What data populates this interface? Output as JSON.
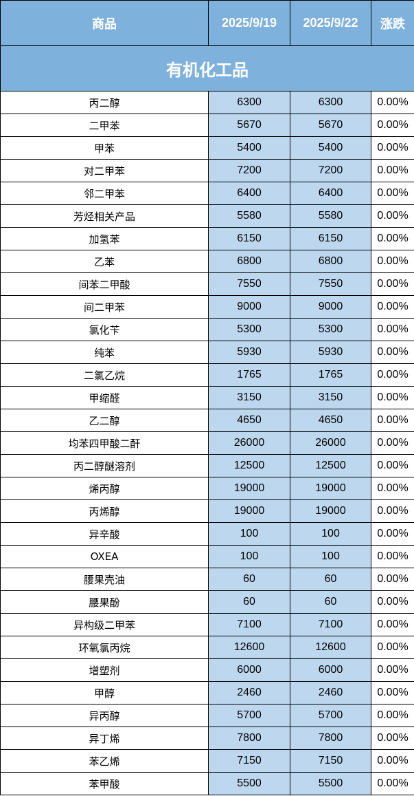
{
  "header": {
    "product": "商品",
    "date1": "2025/9/19",
    "date2": "2025/9/22",
    "change": "涨跌"
  },
  "section_title": "有机化工品",
  "colors": {
    "header_bg": "#7EB1DC",
    "value_bg": "#BDD7EE"
  },
  "rows": [
    {
      "name": "丙二醇",
      "v1": "6300",
      "v2": "6300",
      "chg": "0.00%"
    },
    {
      "name": "二甲苯",
      "v1": "5670",
      "v2": "5670",
      "chg": "0.00%"
    },
    {
      "name": "甲苯",
      "v1": "5400",
      "v2": "5400",
      "chg": "0.00%"
    },
    {
      "name": "对二甲苯",
      "v1": "7200",
      "v2": "7200",
      "chg": "0.00%"
    },
    {
      "name": "邻二甲苯",
      "v1": "6400",
      "v2": "6400",
      "chg": "0.00%"
    },
    {
      "name": "芳烃相关产品",
      "v1": "5580",
      "v2": "5580",
      "chg": "0.00%"
    },
    {
      "name": "加氢苯",
      "v1": "6150",
      "v2": "6150",
      "chg": "0.00%"
    },
    {
      "name": "乙苯",
      "v1": "6800",
      "v2": "6800",
      "chg": "0.00%"
    },
    {
      "name": "间苯二甲酸",
      "v1": "7550",
      "v2": "7550",
      "chg": "0.00%"
    },
    {
      "name": "间二甲苯",
      "v1": "9000",
      "v2": "9000",
      "chg": "0.00%"
    },
    {
      "name": "氯化苄",
      "v1": "5300",
      "v2": "5300",
      "chg": "0.00%"
    },
    {
      "name": "纯苯",
      "v1": "5930",
      "v2": "5930",
      "chg": "0.00%"
    },
    {
      "name": "二氯乙烷",
      "v1": "1765",
      "v2": "1765",
      "chg": "0.00%"
    },
    {
      "name": "甲缩醛",
      "v1": "3150",
      "v2": "3150",
      "chg": "0.00%"
    },
    {
      "name": "乙二醇",
      "v1": "4650",
      "v2": "4650",
      "chg": "0.00%"
    },
    {
      "name": "均苯四甲酸二酐",
      "v1": "26000",
      "v2": "26000",
      "chg": "0.00%"
    },
    {
      "name": "丙二醇醚溶剂",
      "v1": "12500",
      "v2": "12500",
      "chg": "0.00%"
    },
    {
      "name": "烯丙醇",
      "v1": "19000",
      "v2": "19000",
      "chg": "0.00%"
    },
    {
      "name": "丙烯醇",
      "v1": "19000",
      "v2": "19000",
      "chg": "0.00%"
    },
    {
      "name": "异辛酸",
      "v1": "100",
      "v2": "100",
      "chg": "0.00%"
    },
    {
      "name": "OXEA",
      "v1": "100",
      "v2": "100",
      "chg": "0.00%"
    },
    {
      "name": "腰果壳油",
      "v1": "60",
      "v2": "60",
      "chg": "0.00%"
    },
    {
      "name": "腰果酚",
      "v1": "60",
      "v2": "60",
      "chg": "0.00%"
    },
    {
      "name": "异构级二甲苯",
      "v1": "7100",
      "v2": "7100",
      "chg": "0.00%"
    },
    {
      "name": "环氧氯丙烷",
      "v1": "12600",
      "v2": "12600",
      "chg": "0.00%"
    },
    {
      "name": "增塑剂",
      "v1": "6000",
      "v2": "6000",
      "chg": "0.00%"
    },
    {
      "name": "甲醇",
      "v1": "2460",
      "v2": "2460",
      "chg": "0.00%"
    },
    {
      "name": "异丙醇",
      "v1": "5700",
      "v2": "5700",
      "chg": "0.00%"
    },
    {
      "name": "异丁烯",
      "v1": "7800",
      "v2": "7800",
      "chg": "0.00%"
    },
    {
      "name": "苯乙烯",
      "v1": "7150",
      "v2": "7150",
      "chg": "0.00%"
    },
    {
      "name": "苯甲酸",
      "v1": "5500",
      "v2": "5500",
      "chg": "0.00%"
    }
  ]
}
